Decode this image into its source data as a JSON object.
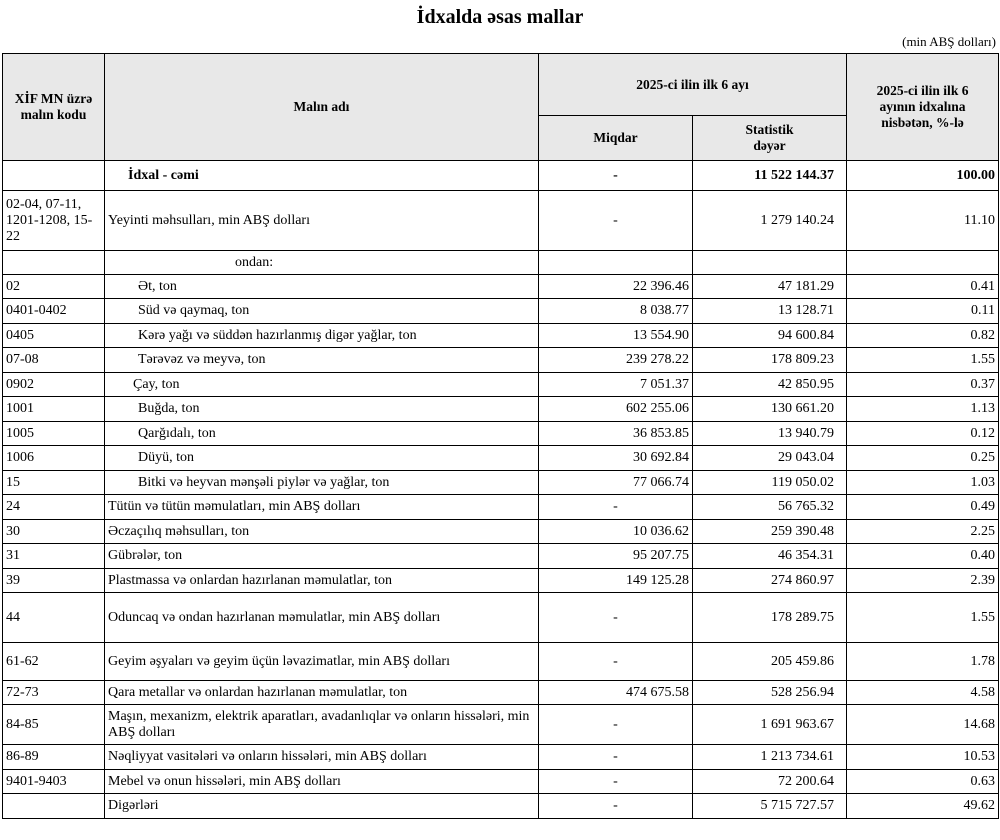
{
  "title": "İdxalda əsas mallar",
  "unit_note": "(min ABŞ dolları)",
  "header": {
    "code": "XİF MN üzrə malın kodu",
    "name": "Malın adı",
    "period": "2025-ci ilin ilk 6 ayı",
    "quantity": "Miqdar",
    "value": "Statistik dəyər",
    "share": "2025-ci ilin ilk 6 ayının idxalına nisbətən, %-lə"
  },
  "rows": [
    {
      "code": "",
      "name": "İdxal - cəmi",
      "quantity": "-",
      "value": "11 522 144.37",
      "share": "100.00"
    },
    {
      "code": "02-04, 07-11, 1201-1208, 15-22",
      "name": "Yeyinti məhsulları, min ABŞ dolları",
      "quantity": "-",
      "value": "1 279 140.24",
      "share": "11.10"
    },
    {
      "name": "ondan:"
    },
    {
      "code": "02",
      "name": "Ət, ton",
      "quantity": "22 396.46",
      "value": "47 181.29",
      "share": "0.41"
    },
    {
      "code": "0401-0402",
      "name": "Süd və qaymaq, ton",
      "quantity": "8 038.77",
      "value": "13 128.71",
      "share": "0.11"
    },
    {
      "code": "0405",
      "name": "Kərə yağı və süddən hazırlanmış digər yağlar, ton",
      "quantity": "13 554.90",
      "value": "94 600.84",
      "share": "0.82"
    },
    {
      "code": "07-08",
      "name": "Tərəvəz və meyvə, ton",
      "quantity": "239 278.22",
      "value": "178 809.23",
      "share": "1.55"
    },
    {
      "code": "0902",
      "name": "Çay, ton",
      "quantity": "7 051.37",
      "value": "42 850.95",
      "share": "0.37"
    },
    {
      "code": "1001",
      "name": "Buğda, ton",
      "quantity": "602 255.06",
      "value": "130 661.20",
      "share": "1.13"
    },
    {
      "code": "1005",
      "name": "Qarğıdalı, ton",
      "quantity": "36 853.85",
      "value": "13 940.79",
      "share": "0.12"
    },
    {
      "code": "1006",
      "name": "Düyü, ton",
      "quantity": "30 692.84",
      "value": "29 043.04",
      "share": "0.25"
    },
    {
      "code": "15",
      "name": "Bitki və heyvan mənşəli piylər və yağlar, ton",
      "quantity": "77 066.74",
      "value": "119 050.02",
      "share": "1.03"
    },
    {
      "code": "24",
      "name": "Tütün və tütün məmulatları, min ABŞ dolları",
      "quantity": "-",
      "value": "56 765.32",
      "share": "0.49"
    },
    {
      "code": "30",
      "name": "Əczaçılıq məhsulları, ton",
      "quantity": "10 036.62",
      "value": "259 390.48",
      "share": "2.25"
    },
    {
      "code": "31",
      "name": "Gübrələr, ton",
      "quantity": "95 207.75",
      "value": "46 354.31",
      "share": "0.40"
    },
    {
      "code": "39",
      "name": "Plastmassa və onlardan hazırlanan məmulatlar, ton",
      "quantity": "149 125.28",
      "value": "274 860.97",
      "share": "2.39"
    },
    {
      "code": "44",
      "name": "Oduncaq və ondan hazırlanan məmulatlar, min ABŞ dolları",
      "quantity": "-",
      "value": "178 289.75",
      "share": "1.55"
    },
    {
      "code": "61-62",
      "name": "Geyim əşyaları və geyim üçün ləvazimatlar, min ABŞ dolları",
      "quantity": "-",
      "value": "205 459.86",
      "share": "1.78"
    },
    {
      "code": "72-73",
      "name": "Qara metallar və onlardan hazırlanan məmulatlar, ton",
      "quantity": "474 675.58",
      "value": "528 256.94",
      "share": "4.58"
    },
    {
      "code": "84-85",
      "name": "Maşın, mexanizm, elektrik aparatları, avadanlıqlar və onların hissələri, min ABŞ dolları",
      "quantity": "-",
      "value": "1 691 963.67",
      "share": "14.68"
    },
    {
      "code": "86-89",
      "name": "Nəqliyyat vasitələri və onların hissələri, min ABŞ dolları",
      "quantity": "-",
      "value": "1 213 734.61",
      "share": "10.53"
    },
    {
      "code": "9401-9403",
      "name": "Mebel və onun hissələri, min ABŞ dolları",
      "quantity": "-",
      "value": "72 200.64",
      "share": "0.63"
    },
    {
      "code": "",
      "name": "Digərləri",
      "quantity": "-",
      "value": "5 715 727.57",
      "share": "49.62"
    }
  ]
}
